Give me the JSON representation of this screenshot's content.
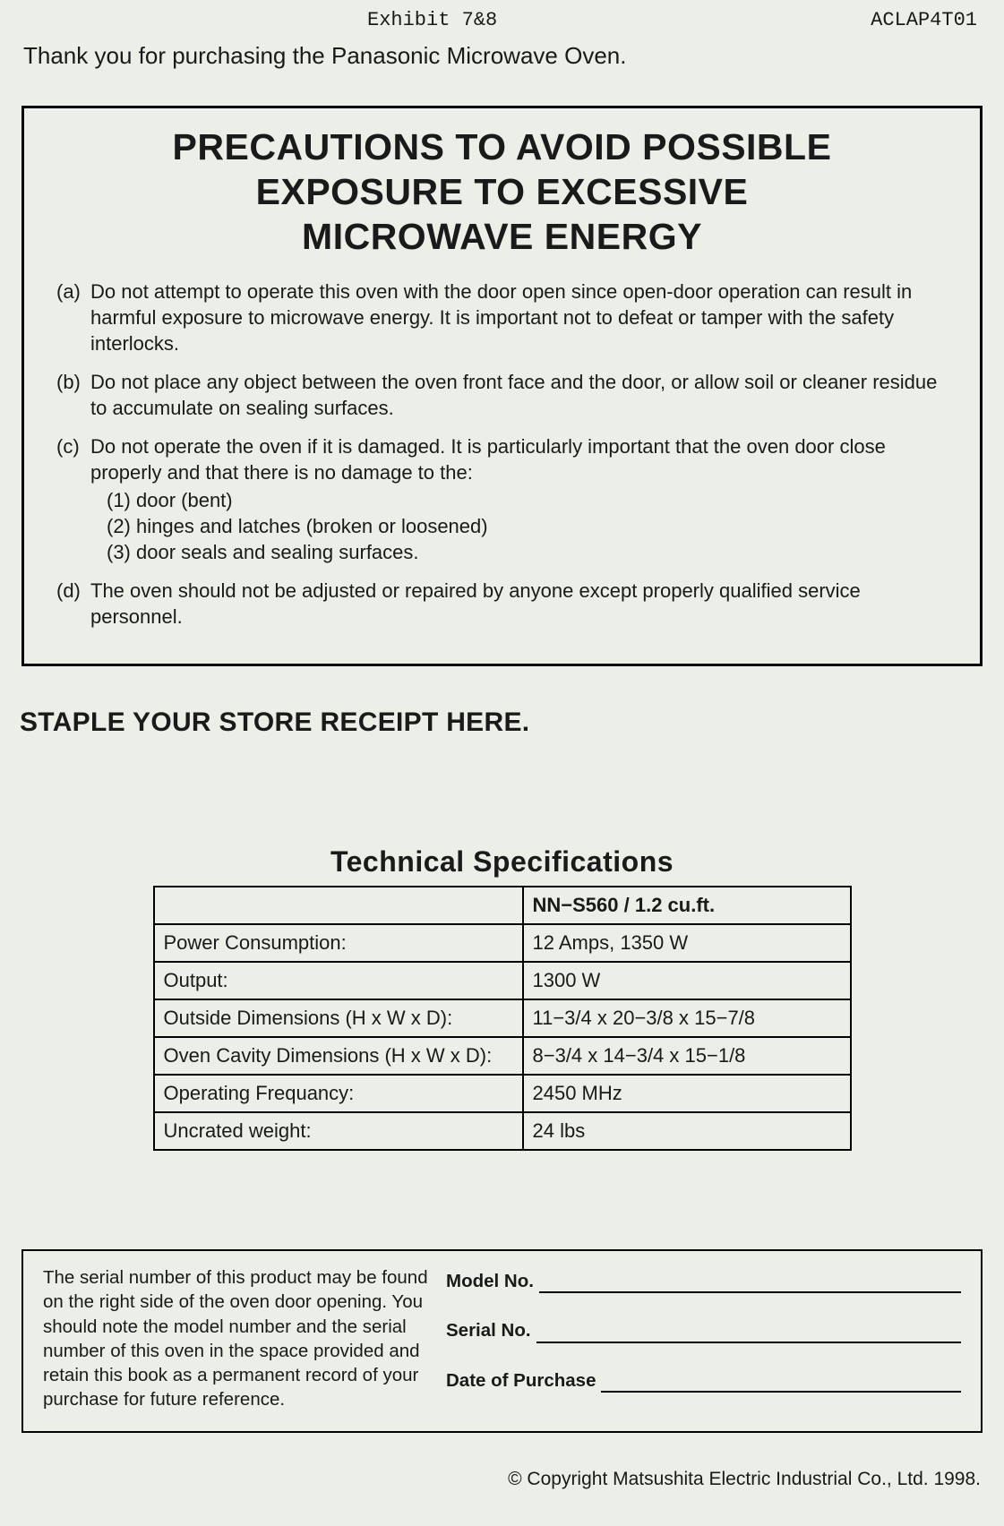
{
  "header": {
    "exhibit": "Exhibit 7&8",
    "code": "ACLAP4T01"
  },
  "intro": "Thank you for purchasing the Panasonic Microwave Oven.",
  "precautions": {
    "title_line1": "PRECAUTIONS TO AVOID POSSIBLE",
    "title_line2": "EXPOSURE TO EXCESSIVE",
    "title_line3": "MICROWAVE ENERGY",
    "items": [
      {
        "marker": "(a)",
        "text": "Do not attempt to operate this oven with the door open since open-door operation can result in harmful exposure to microwave energy. It is important not to defeat or tamper with the safety interlocks."
      },
      {
        "marker": "(b)",
        "text": "Do not place any object between the oven front face and the door, or allow soil or cleaner residue to accumulate on sealing surfaces."
      },
      {
        "marker": "(c)",
        "text": "Do not operate the oven if it is damaged. It is particularly important that the oven door close properly and that there is no damage to the:",
        "sub": [
          "(1) door (bent)",
          "(2) hinges and latches (broken or loosened)",
          "(3) door seals and sealing surfaces."
        ]
      },
      {
        "marker": "(d)",
        "text": "The oven should not be adjusted or repaired by anyone except properly qualified service personnel."
      }
    ]
  },
  "staple": "STAPLE YOUR STORE RECEIPT HERE.",
  "tech": {
    "title": "Technical Specifications",
    "header_right": "NN−S560  / 1.2 cu.ft.",
    "rows": [
      {
        "label": "Power Consumption:",
        "value": "12 Amps,  1350 W"
      },
      {
        "label": "Output:",
        "value": "1300 W"
      },
      {
        "label": "Outside Dimensions (H x W x D):",
        "value": "11−3/4 x 20−3/8 x 15−7/8"
      },
      {
        "label": "Oven Cavity Dimensions (H x W x D):",
        "value": "  8−3/4 x 14−3/4 x 15−1/8"
      },
      {
        "label": "Operating Frequancy:",
        "value": "2450 MHz"
      },
      {
        "label": "Uncrated weight:",
        "value": "24 lbs"
      }
    ]
  },
  "serial": {
    "note": "The serial number of this product may be found on the right side of the oven door opening. You should note the model number and the serial number of this oven in the space provided and retain this book as a permanent record of your purchase for future reference.",
    "fields": [
      "Model No.",
      "Serial No.",
      "Date of Purchase"
    ]
  },
  "copyright": "© Copyright Matsushita Electric Industrial Co., Ltd. 1998."
}
